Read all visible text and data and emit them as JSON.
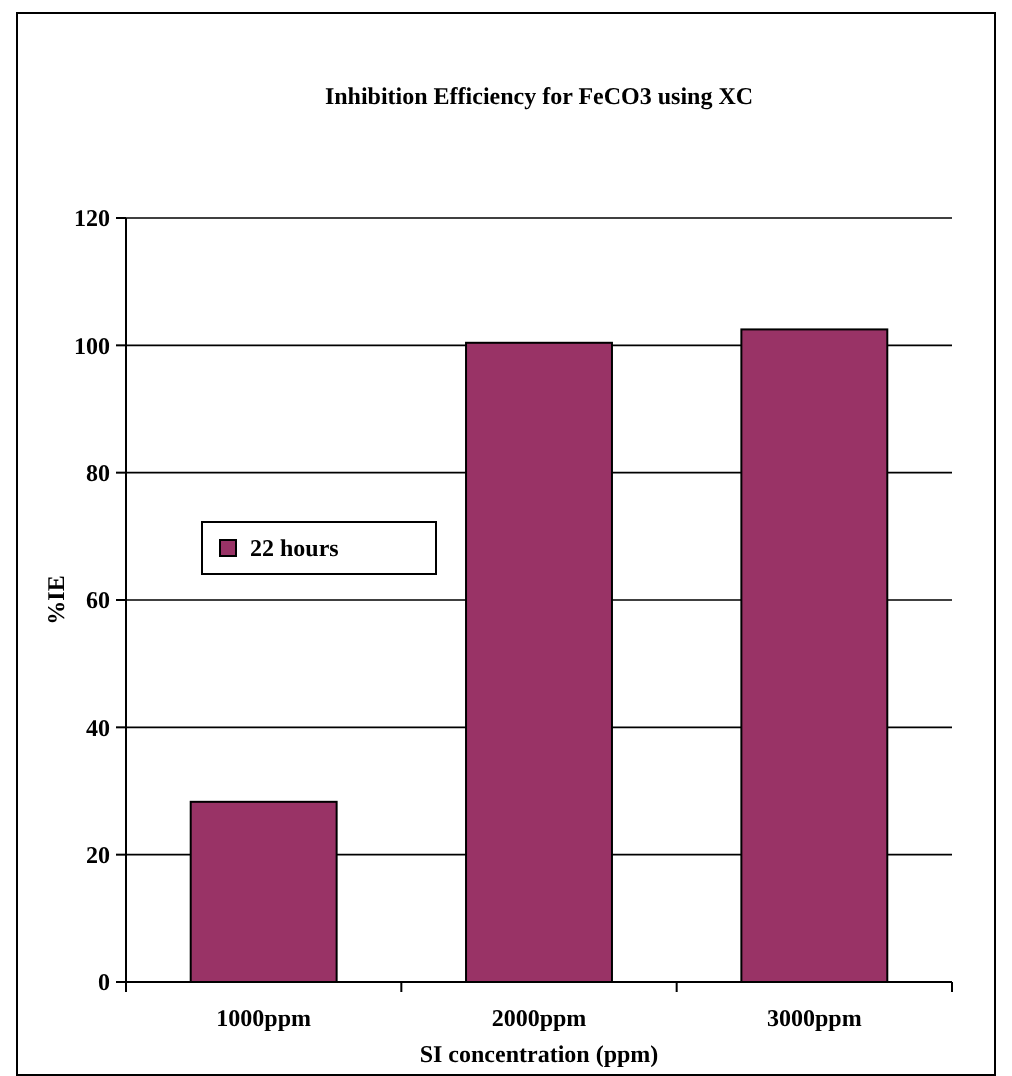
{
  "chart_data": {
    "type": "bar",
    "title": "Inhibition Efficiency for FeCO3 using XC",
    "xlabel": "SI concentration (ppm)",
    "ylabel": "%IE",
    "categories": [
      "1000ppm",
      "2000ppm",
      "3000ppm"
    ],
    "series": [
      {
        "name": "22 hours",
        "color": "#993366",
        "values": [
          28.3,
          100.4,
          102.5
        ]
      }
    ],
    "ylim": [
      0,
      120
    ],
    "yticks": [
      0,
      20,
      40,
      60,
      80,
      100,
      120
    ],
    "grid": "y",
    "legend": "left"
  }
}
